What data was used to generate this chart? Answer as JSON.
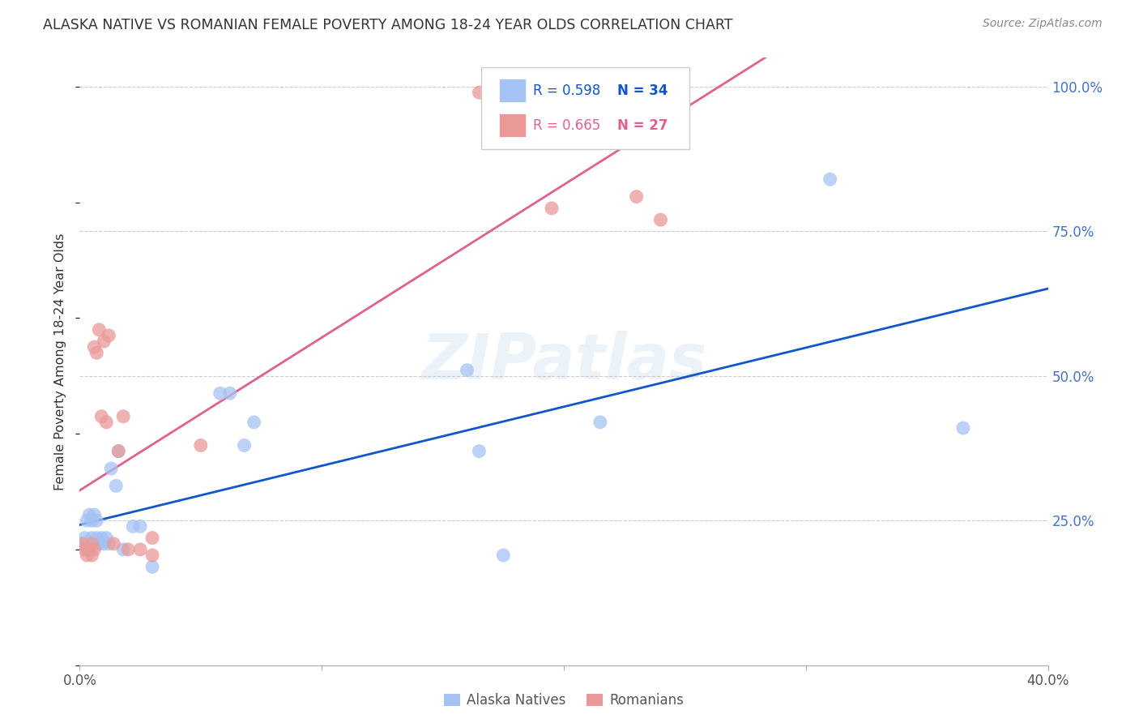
{
  "title": "ALASKA NATIVE VS ROMANIAN FEMALE POVERTY AMONG 18-24 YEAR OLDS CORRELATION CHART",
  "source": "Source: ZipAtlas.com",
  "ylabel": "Female Poverty Among 18-24 Year Olds",
  "xlim": [
    0.0,
    0.4
  ],
  "ylim": [
    0.0,
    1.05
  ],
  "alaska_R": 0.598,
  "alaska_N": 34,
  "romanian_R": 0.665,
  "romanian_N": 27,
  "alaska_color": "#a4c2f4",
  "romanian_color": "#ea9999",
  "alaska_line_color": "#1155cc",
  "romanian_line_color": "#e06090",
  "watermark": "ZIPatlas",
  "alaska_x": [
    0.001,
    0.002,
    0.003,
    0.003,
    0.004,
    0.004,
    0.005,
    0.005,
    0.006,
    0.006,
    0.007,
    0.007,
    0.008,
    0.009,
    0.01,
    0.011,
    0.012,
    0.013,
    0.015,
    0.016,
    0.018,
    0.022,
    0.025,
    0.03,
    0.058,
    0.062,
    0.068,
    0.072,
    0.16,
    0.165,
    0.175,
    0.215,
    0.31,
    0.365
  ],
  "alaska_y": [
    0.21,
    0.22,
    0.2,
    0.25,
    0.21,
    0.26,
    0.22,
    0.25,
    0.21,
    0.26,
    0.22,
    0.25,
    0.21,
    0.22,
    0.21,
    0.22,
    0.21,
    0.34,
    0.31,
    0.37,
    0.2,
    0.24,
    0.24,
    0.17,
    0.47,
    0.47,
    0.38,
    0.42,
    0.51,
    0.37,
    0.19,
    0.42,
    0.84,
    0.41
  ],
  "romanian_x": [
    0.001,
    0.002,
    0.003,
    0.004,
    0.005,
    0.005,
    0.006,
    0.006,
    0.007,
    0.008,
    0.009,
    0.01,
    0.011,
    0.012,
    0.014,
    0.016,
    0.018,
    0.02,
    0.025,
    0.03,
    0.03,
    0.05,
    0.165,
    0.18,
    0.195,
    0.23,
    0.24
  ],
  "romanian_y": [
    0.21,
    0.2,
    0.19,
    0.2,
    0.21,
    0.19,
    0.2,
    0.55,
    0.54,
    0.58,
    0.43,
    0.56,
    0.42,
    0.57,
    0.21,
    0.37,
    0.43,
    0.2,
    0.2,
    0.19,
    0.22,
    0.38,
    0.99,
    0.99,
    0.79,
    0.81,
    0.77
  ]
}
